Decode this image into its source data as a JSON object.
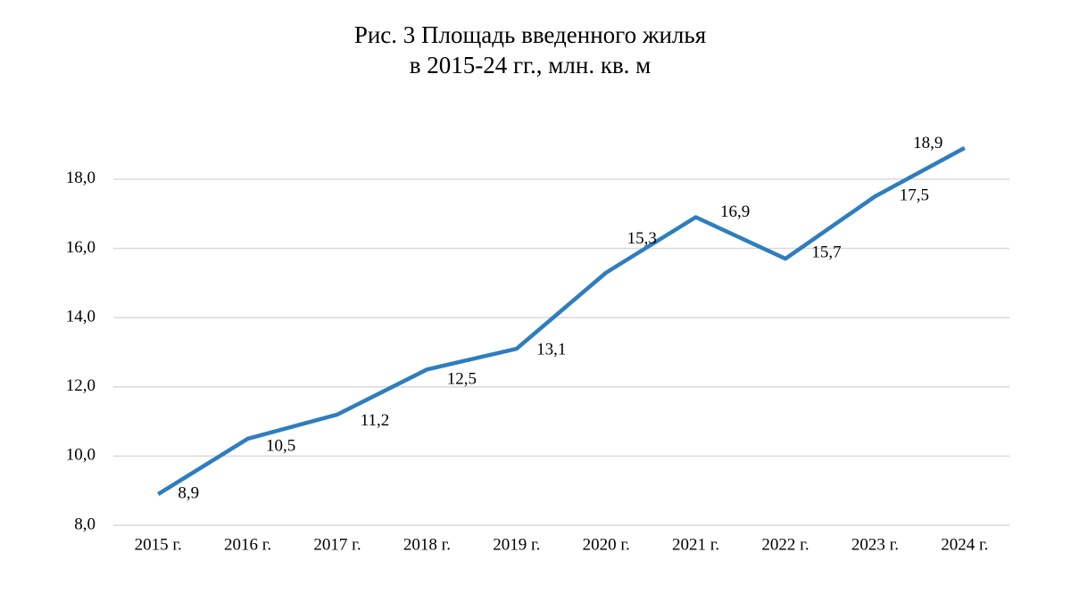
{
  "chart_data": {
    "type": "line",
    "title": [
      "Рис. 3 Площадь введенного жилья",
      "в 2015-24 гг., млн. кв. м"
    ],
    "categories": [
      "2015 г.",
      "2016 г.",
      "2017 г.",
      "2018 г.",
      "2019 г.",
      "2020 г.",
      "2021 г.",
      "2022 г.",
      "2023 г.",
      "2024 г."
    ],
    "series": [
      {
        "name": "Площадь введенного жилья",
        "color": "#2e7ebf",
        "values": [
          8.9,
          10.5,
          11.2,
          12.5,
          13.1,
          15.3,
          16.9,
          15.7,
          17.5,
          18.9
        ],
        "value_labels": [
          "8,9",
          "10,5",
          "11,2",
          "12,5",
          "13,1",
          "15,3",
          "16,9",
          "15,7",
          "17,5",
          "18,9"
        ]
      }
    ],
    "ylim": [
      8,
      19
    ],
    "yticks": [
      {
        "value": 8,
        "label": "8,0"
      },
      {
        "value": 10,
        "label": "10,0"
      },
      {
        "value": 12,
        "label": "12,0"
      },
      {
        "value": 14,
        "label": "14,0"
      },
      {
        "value": 16,
        "label": "16,0"
      },
      {
        "value": 18,
        "label": "18,0"
      }
    ],
    "grid": true
  }
}
